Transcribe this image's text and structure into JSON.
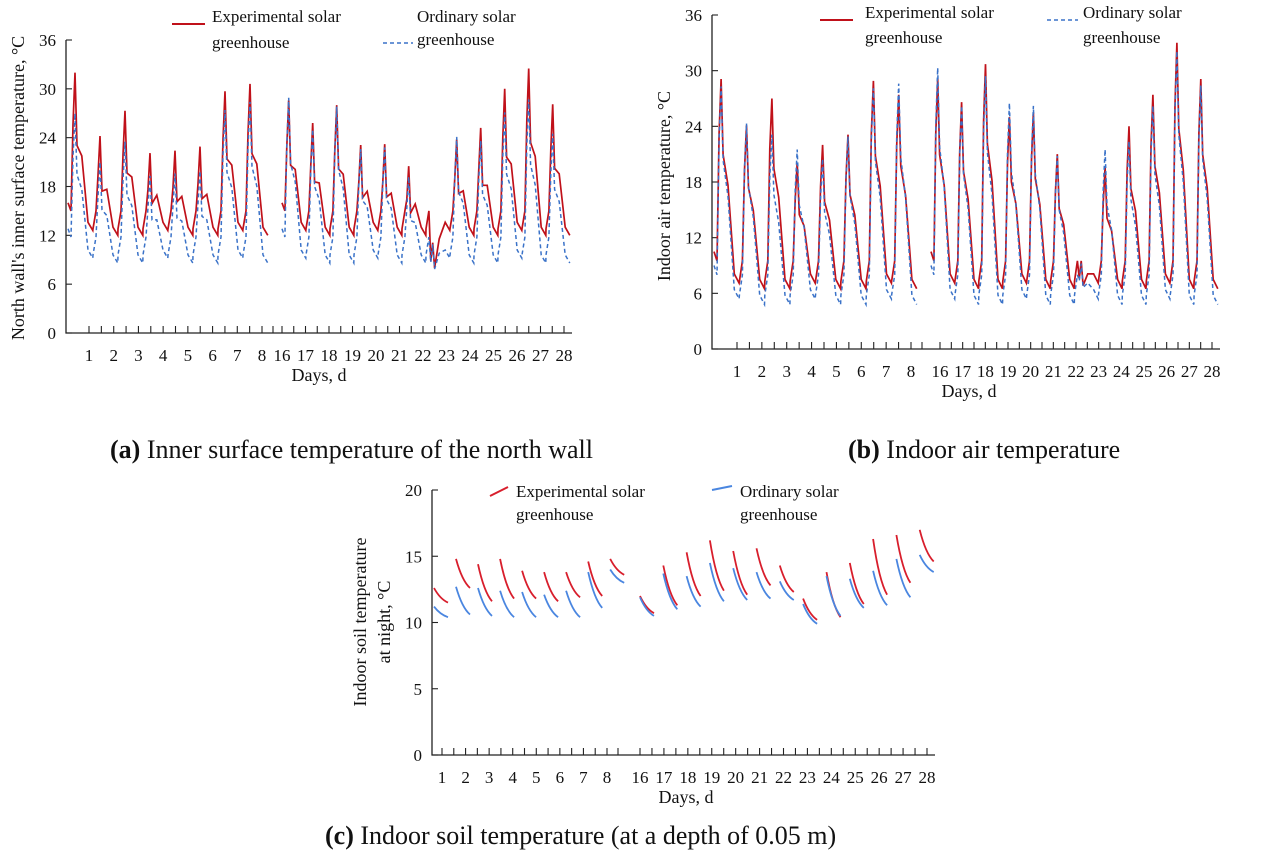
{
  "panel_captions": [
    {
      "label": "(a)",
      "text": " Inner surface temperature of the north wall"
    },
    {
      "label": "(b)",
      "text": " Indoor air temperature"
    },
    {
      "label": "(c)",
      "text": " Indoor soil temperature (at a depth of 0.05 m)"
    }
  ],
  "colors": {
    "experimental": "#c0111a",
    "ordinary": "#3a72c8",
    "ordinary_c": "#4a86e0"
  },
  "chart_data": [
    {
      "type": "line",
      "id": "a",
      "xlabel": "Days, d",
      "ylabel": "North wall's inner surface temperature, °C",
      "ylim": [
        0,
        36
      ],
      "yticks": [
        "0",
        "6",
        "12",
        "18",
        "24",
        "30",
        "36"
      ],
      "day_labels": [
        "1",
        "2",
        "3",
        "4",
        "5",
        "6",
        "7",
        "8",
        "16",
        "17",
        "18",
        "19",
        "20",
        "21",
        "22",
        "23",
        "24",
        "25",
        "26",
        "27",
        "28"
      ],
      "legend": [
        {
          "line1": "Experimental solar",
          "line2": "greenhouse",
          "style": "solid"
        },
        {
          "line1": "Ordinary solar",
          "line2": "greenhouse",
          "style": "dashed"
        }
      ],
      "series": [
        {
          "name": "Experimental solar greenhouse",
          "style": "solid",
          "min": 12,
          "peaks": [
            32,
            24.2,
            27.3,
            22.1,
            22.4,
            22.9,
            29.7,
            30.6,
            28.6,
            25.8,
            28,
            23.1,
            23.2,
            20.5,
            11.1,
            23.8,
            25.2,
            30,
            32.5,
            28.1
          ]
        },
        {
          "name": "Ordinary solar greenhouse",
          "style": "dashed",
          "min": 8.8,
          "peaks": [
            27,
            21,
            23.5,
            19.3,
            19.6,
            19.9,
            27.4,
            28.4,
            28.9,
            25,
            27.8,
            22.6,
            22.8,
            19.2,
            10.9,
            24.1,
            23.6,
            27.1,
            28.7,
            24.5
          ]
        }
      ]
    },
    {
      "type": "line",
      "id": "b",
      "xlabel": "Days, d",
      "ylabel": "Indoor air temperature, °C",
      "ylim": [
        0,
        36
      ],
      "yticks": [
        "0",
        "6",
        "12",
        "18",
        "24",
        "30",
        "36"
      ],
      "day_labels": [
        "1",
        "2",
        "3",
        "4",
        "5",
        "6",
        "7",
        "8",
        "16",
        "17",
        "18",
        "19",
        "20",
        "21",
        "22",
        "23",
        "24",
        "25",
        "26",
        "27",
        "28"
      ],
      "legend": [
        {
          "line1": "Experimental solar",
          "line2": "greenhouse",
          "style": "solid"
        },
        {
          "line1": "Ordinary solar",
          "line2": "greenhouse",
          "style": "dashed"
        }
      ],
      "series": [
        {
          "name": "Experimental solar greenhouse",
          "style": "solid",
          "min": 6.5,
          "peaks": [
            29.1,
            24.1,
            27,
            20.1,
            22,
            23.1,
            28.9,
            27.4,
            29.1,
            26.6,
            30.7,
            25,
            25.5,
            21,
            9.5,
            19.6,
            24,
            27.4,
            33,
            29.1
          ]
        },
        {
          "name": "Ordinary solar greenhouse",
          "style": "dashed",
          "min": 5,
          "peaks": [
            28.3,
            24.3,
            23.1,
            21.5,
            20.5,
            22.9,
            28.1,
            28.6,
            30.3,
            26.2,
            29.4,
            26.5,
            26.2,
            20.8,
            9.2,
            21.5,
            22.4,
            26.2,
            32.1,
            28.4
          ]
        }
      ]
    },
    {
      "type": "line",
      "id": "c",
      "xlabel": "Days, d",
      "ylabel": "Indoor soil temperature at night, °C",
      "ylabel_line1": "Indoor soil temperature",
      "ylabel_line2": "at night, °C",
      "ylim": [
        0,
        20
      ],
      "yticks": [
        "0",
        "5",
        "10",
        "15",
        "20"
      ],
      "day_labels": [
        "1",
        "2",
        "3",
        "4",
        "5",
        "6",
        "7",
        "8",
        "16",
        "17",
        "18",
        "19",
        "20",
        "21",
        "22",
        "23",
        "24",
        "25",
        "26",
        "27",
        "28"
      ],
      "legend": [
        {
          "line1": "Experimental solar",
          "line2": "greenhouse",
          "style": "solid"
        },
        {
          "line1": "Ordinary solar",
          "line2": "greenhouse",
          "style": "solid"
        }
      ],
      "series": [
        {
          "name": "Experimental solar greenhouse",
          "segments": [
            [
              12.6,
              11.5
            ],
            [
              14.8,
              12.6
            ],
            [
              14.4,
              11.6
            ],
            [
              14.8,
              11.8
            ],
            [
              13.9,
              11.8
            ],
            [
              13.8,
              11.6
            ],
            [
              13.8,
              11.9
            ],
            [
              14.6,
              12
            ],
            [
              14.8,
              13.6
            ],
            [
              12,
              10.7
            ],
            [
              14.3,
              11.3
            ],
            [
              15.3,
              12
            ],
            [
              16.2,
              12.4
            ],
            [
              15.4,
              12.1
            ],
            [
              15.6,
              12.8
            ],
            [
              14.3,
              12.3
            ],
            [
              11.8,
              10.2
            ],
            [
              13.8,
              10.4
            ],
            [
              14.5,
              11.4
            ],
            [
              16.3,
              12.1
            ],
            [
              16.6,
              13
            ],
            [
              17,
              14.6
            ]
          ]
        },
        {
          "name": "Ordinary solar greenhouse",
          "segments": [
            [
              11.2,
              10.4
            ],
            [
              12.7,
              10.6
            ],
            [
              12.6,
              10.5
            ],
            [
              12.4,
              10.4
            ],
            [
              12.3,
              10.4
            ],
            [
              12.1,
              10.4
            ],
            [
              12.4,
              10.4
            ],
            [
              13.8,
              11.1
            ],
            [
              14,
              13
            ],
            [
              11.9,
              10.5
            ],
            [
              13.7,
              11
            ],
            [
              13.5,
              11.2
            ],
            [
              14.5,
              11.6
            ],
            [
              14.1,
              11.7
            ],
            [
              13.8,
              11.8
            ],
            [
              13.1,
              11.7
            ],
            [
              11.4,
              9.9
            ],
            [
              13.5,
              10.5
            ],
            [
              13.3,
              11.1
            ],
            [
              13.9,
              11.3
            ],
            [
              14.8,
              11.9
            ],
            [
              15.1,
              13.8
            ]
          ]
        }
      ]
    }
  ]
}
